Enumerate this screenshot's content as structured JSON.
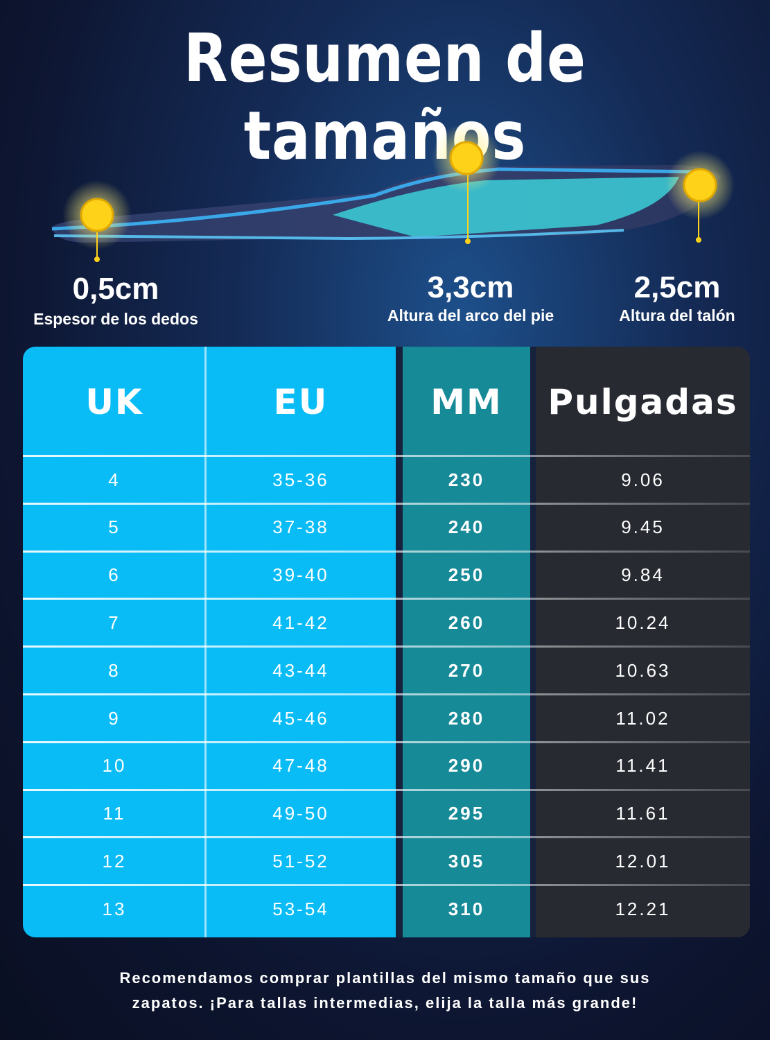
{
  "header": {
    "title": "Resumen de tamaños"
  },
  "measurements": [
    {
      "value": "0,5cm",
      "label": "Espesor de los dedos"
    },
    {
      "value": "3,3cm",
      "label": "Altura del arco del pie"
    },
    {
      "value": "2,5cm",
      "label": "Altura del talón"
    }
  ],
  "table": {
    "columns": [
      "UK",
      "EU",
      "MM",
      "Pulgadas"
    ],
    "rows": [
      [
        "4",
        "35-36",
        "230",
        "9.06"
      ],
      [
        "5",
        "37-38",
        "240",
        "9.45"
      ],
      [
        "6",
        "39-40",
        "250",
        "9.84"
      ],
      [
        "7",
        "41-42",
        "260",
        "10.24"
      ],
      [
        "8",
        "43-44",
        "270",
        "10.63"
      ],
      [
        "9",
        "45-46",
        "280",
        "11.02"
      ],
      [
        "10",
        "47-48",
        "290",
        "11.41"
      ],
      [
        "11",
        "49-50",
        "295",
        "11.61"
      ],
      [
        "12",
        "51-52",
        "305",
        "12.01"
      ],
      [
        "13",
        "53-54",
        "310",
        "12.21"
      ]
    ]
  },
  "footer": {
    "lines": [
      "Recomendamos comprar plantillas del mismo tamaño que sus",
      "zapatos. ¡Para tallas intermedias, elija la talla más grande!"
    ]
  }
}
